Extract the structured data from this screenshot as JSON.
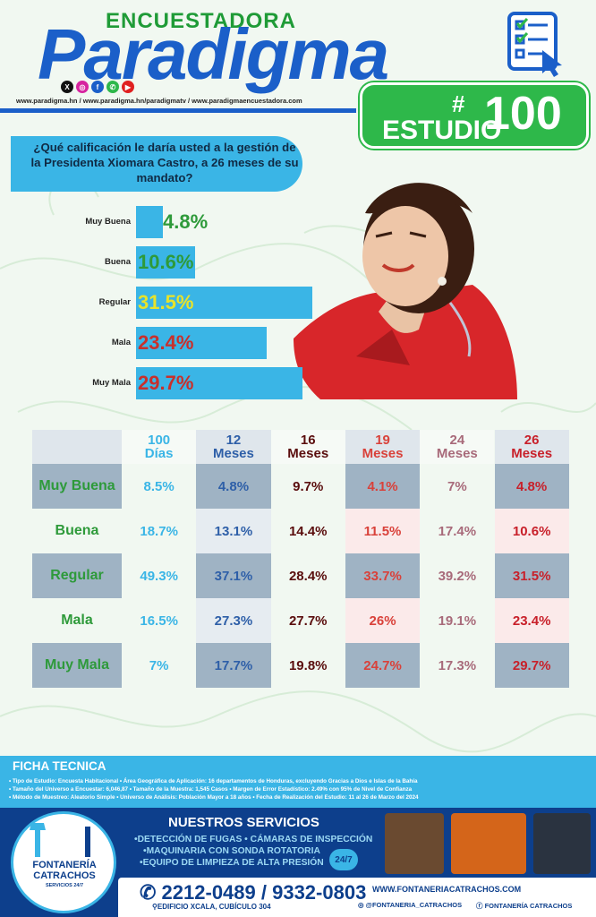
{
  "header": {
    "kicker": "ENCUESTADORA",
    "brand": "Paradigma",
    "websites": "www.paradigma.hn  /  www.paradigma.hn/paradigmatv  /  www.paradigmaencuestadora.com",
    "social_icons": [
      "x-icon",
      "instagram-icon",
      "facebook-icon",
      "whatsapp-icon",
      "youtube-icon"
    ],
    "study_label": "ESTUDIO",
    "study_hash": "#",
    "study_number": "100"
  },
  "question": "¿Qué calificación le daría usted a la gestión de la Presidenta Xiomara Castro, a 26 meses de su mandato?",
  "chart_data": [
    {
      "type": "bar",
      "categories": [
        "Muy Buena",
        "Buena",
        "Regular",
        "Mala",
        "Muy Mala"
      ],
      "values": [
        4.8,
        10.6,
        31.5,
        23.4,
        29.7
      ],
      "value_labels": [
        "4.8%",
        "10.6%",
        "31.5%",
        "23.4%",
        "29.7%"
      ],
      "value_colors": [
        "#2e9a3a",
        "#2e9a3a",
        "#e8e32a",
        "#c8302c",
        "#c8302c"
      ],
      "bar_color": "#3ab5e6",
      "orientation": "horizontal"
    },
    {
      "type": "table",
      "columns": [
        {
          "line1": "100",
          "line2": "Días",
          "color": "#3ab5e6",
          "bg": "#f1f8f1"
        },
        {
          "line1": "12",
          "line2": "Meses",
          "color": "#2e5fa8",
          "bg": "#e6ecf1"
        },
        {
          "line1": "16",
          "line2": "Meses",
          "color": "#5a0d0d",
          "bg": "#f1f8f1"
        },
        {
          "line1": "19",
          "line2": "Meses",
          "color": "#d9413a",
          "bg": "#fbeaea"
        },
        {
          "line1": "24",
          "line2": "Meses",
          "color": "#a86a7a",
          "bg": "#f1f8f1"
        },
        {
          "line1": "26",
          "line2": "Meses",
          "color": "#c8202a",
          "bg": "#fbeaea"
        }
      ],
      "rows": [
        {
          "label": "Muy Buena",
          "values": [
            "8.5%",
            "4.8%",
            "9.7%",
            "4.1%",
            "7%",
            "4.8%"
          ]
        },
        {
          "label": "Buena",
          "values": [
            "18.7%",
            "13.1%",
            "14.4%",
            "11.5%",
            "17.4%",
            "10.6%"
          ]
        },
        {
          "label": "Regular",
          "values": [
            "49.3%",
            "37.1%",
            "28.4%",
            "33.7%",
            "39.2%",
            "31.5%"
          ]
        },
        {
          "label": "Mala",
          "values": [
            "16.5%",
            "27.3%",
            "27.7%",
            "26%",
            "19.1%",
            "23.4%"
          ]
        },
        {
          "label": "Muy Mala",
          "values": [
            "7%",
            "17.7%",
            "19.8%",
            "24.7%",
            "17.3%",
            "29.7%"
          ]
        }
      ]
    }
  ],
  "ficha": {
    "title": "FICHA TECNICA",
    "lines": [
      "• Tipo de Estudio: Encuesta Habitacional  • Área Geográfica de Aplicación: 16 departamentos de Honduras, excluyendo Gracias a Dios e Islas de la Bahía",
      "• Tamaño del Universo a Encuestar: 6,046,87  • Tamaño de la Muestra: 1,545 Casos  • Margen de Error Estadístico: 2.49% con 95% de Nivel de Confianza",
      "• Método de Muestreo: Aleatorio Simple  • Universo de Análisis: Población Mayor a 18 años  • Fecha de Realización del Estudio: 11 al 26 de Marzo del 2024"
    ]
  },
  "footer": {
    "logo_name_1": "FONTANERÍA",
    "logo_name_2": "CATRACHOS",
    "logo_services": "SERVICIOS 24/7",
    "services_title": "NUESTROS SERVICIOS",
    "services": [
      "•DETECCIÓN DE FUGAS • CÁMARAS DE INSPECCIÓN",
      "•MAQUINARIA CON SONDA ROTATORIA",
      "•EQUIPO DE LIMPIEZA DE ALTA PRESIÓN"
    ],
    "badge": "24/7",
    "phones": "2212-0489 / 9332-0803",
    "address": "EDIFICIO XCALA, CUBÍCULO 304",
    "website": "WWW.FONTANERIACATRACHOS.COM",
    "instagram": "@FONTANERIA_CATRACHOS",
    "facebook": "FONTANERÍA CATRACHOS"
  },
  "colors": {
    "brand_blue": "#1b5fc9",
    "brand_green": "#2eb84a",
    "accent_cyan": "#3ab5e6",
    "footer_navy": "#0d3f8c"
  }
}
